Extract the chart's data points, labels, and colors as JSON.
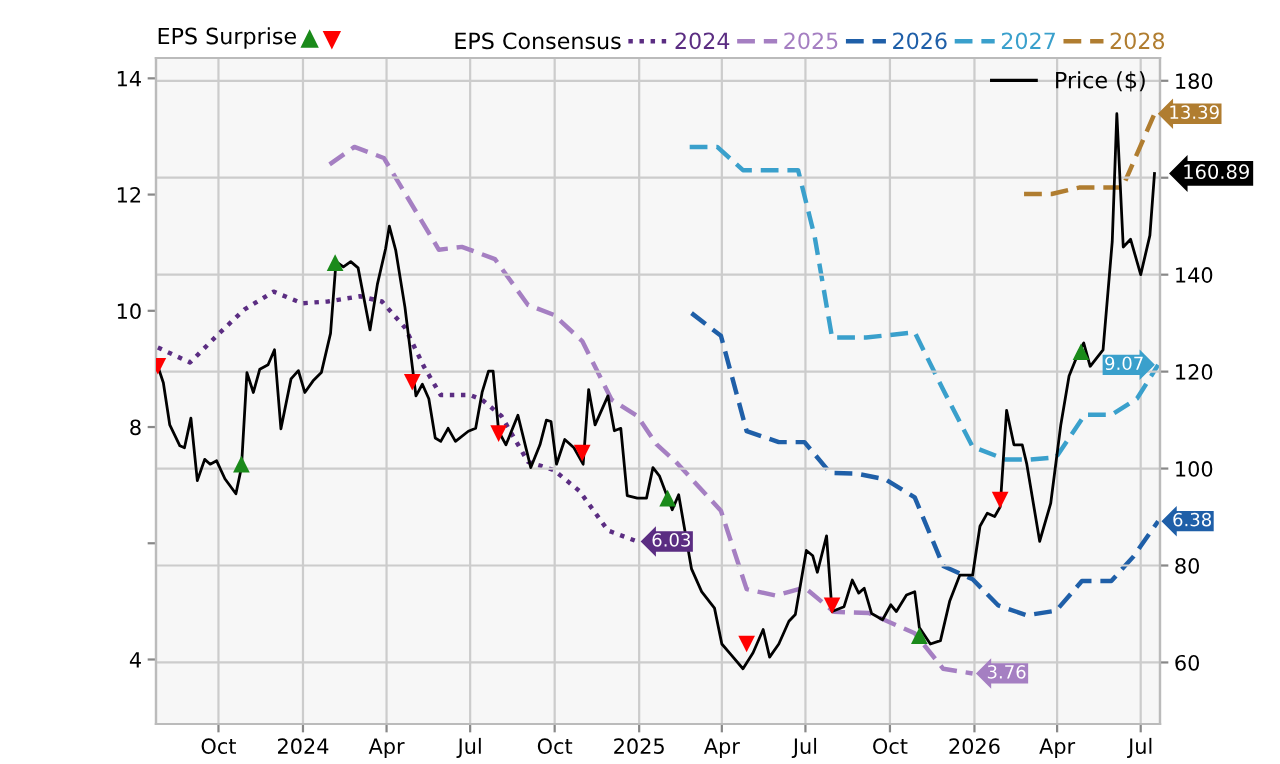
{
  "chart_data": {
    "type": "line",
    "annotations": [
      "EPS Surprise"
    ],
    "legend_title": "EPS Consensus",
    "legend": "top",
    "grid": true,
    "xlim": [
      "2023-07-25",
      "2026-07-22"
    ],
    "xticks": [
      {
        "value": "2023-10-01",
        "label": "Oct"
      },
      {
        "value": "2024-01-01",
        "label": "2024"
      },
      {
        "value": "2024-04-01",
        "label": "Apr"
      },
      {
        "value": "2024-07-01",
        "label": "Jul"
      },
      {
        "value": "2024-10-01",
        "label": "Oct"
      },
      {
        "value": "2025-01-01",
        "label": "2025"
      },
      {
        "value": "2025-04-01",
        "label": "Apr"
      },
      {
        "value": "2025-07-01",
        "label": "Jul"
      },
      {
        "value": "2025-10-01",
        "label": "Oct"
      },
      {
        "value": "2026-01-01",
        "label": "2026"
      },
      {
        "value": "2026-04-01",
        "label": "Apr"
      },
      {
        "value": "2026-07-01",
        "label": "Jul"
      }
    ],
    "ylim": [
      2.89,
      14.35
    ],
    "yticks": [
      4,
      {
        "value": 6,
        "label": null
      },
      8,
      10,
      12,
      14
    ],
    "y2lim": [
      47.3,
      184.7
    ],
    "y2ticks": [
      60,
      80,
      100,
      120,
      140,
      {
        "value": 160,
        "label": null
      },
      180
    ],
    "series": [
      {
        "name": "2024",
        "color": "#5b2d82",
        "line_style": "dotted",
        "x": [
          "2023-07-27",
          "2023-08-31",
          "2023-10-01",
          "2023-10-29",
          "2023-11-30",
          "2023-12-31",
          "2024-01-28",
          "2024-03-03",
          "2024-03-27",
          "2024-04-21",
          "2024-05-12",
          "2024-05-30",
          "2024-07-01",
          "2024-07-14",
          "2024-08-04",
          "2024-09-02",
          "2024-09-30",
          "2024-10-28",
          "2024-11-28",
          "2024-12-30"
        ],
        "values": [
          9.37,
          9.11,
          9.6,
          10.02,
          10.33,
          10.13,
          10.16,
          10.25,
          10.16,
          9.71,
          9.03,
          8.55,
          8.55,
          8.47,
          8.19,
          7.4,
          7.26,
          6.9,
          6.22,
          6.03
        ],
        "value_labels": [
          null,
          null,
          null,
          null,
          null,
          null,
          null,
          null,
          null,
          null,
          null,
          null,
          null,
          null,
          null,
          null,
          null,
          null,
          null,
          "6.03"
        ]
      },
      {
        "name": "2025",
        "color": "#a57fc2",
        "line_style": "dashed",
        "x": [
          "2024-01-30",
          "2024-02-26",
          "2024-03-29",
          "2024-05-28",
          "2024-06-22",
          "2024-07-28",
          "2024-09-02",
          "2024-09-30",
          "2024-10-31",
          "2024-12-02",
          "2024-12-30",
          "2025-01-20",
          "2025-02-10",
          "2025-03-31",
          "2025-04-28",
          "2025-05-30",
          "2025-06-30",
          "2025-08-01",
          "2025-09-08",
          "2025-10-28",
          "2025-11-28",
          "2025-12-30"
        ],
        "values": [
          12.52,
          12.82,
          12.63,
          11.05,
          11.1,
          10.89,
          10.1,
          9.93,
          9.48,
          8.47,
          8.19,
          7.7,
          7.4,
          6.56,
          5.21,
          5.1,
          5.24,
          4.82,
          4.8,
          4.45,
          3.84,
          3.76
        ],
        "value_labels": [
          null,
          null,
          null,
          null,
          null,
          null,
          null,
          null,
          null,
          null,
          null,
          null,
          null,
          null,
          null,
          null,
          null,
          null,
          null,
          null,
          null,
          "3.76"
        ]
      },
      {
        "name": "2026",
        "color": "#1f5fa8",
        "line_style": "dashed",
        "x": [
          "2025-02-27",
          "2025-03-31",
          "2025-04-28",
          "2025-06-02",
          "2025-06-30",
          "2025-07-28",
          "2025-08-25",
          "2025-09-26",
          "2025-10-28",
          "2025-11-28",
          "2025-12-30",
          "2026-01-27",
          "2026-02-27",
          "2026-03-31",
          "2026-04-28",
          "2026-05-30",
          "2026-06-23",
          "2026-07-20"
        ],
        "values": [
          9.96,
          9.57,
          7.93,
          7.74,
          7.74,
          7.21,
          7.2,
          7.1,
          6.79,
          5.61,
          5.38,
          4.93,
          4.76,
          4.84,
          5.35,
          5.35,
          5.77,
          6.38
        ],
        "value_labels": [
          null,
          null,
          null,
          null,
          null,
          null,
          null,
          null,
          null,
          null,
          null,
          null,
          null,
          null,
          null,
          null,
          null,
          "6.38"
        ]
      },
      {
        "name": "2027",
        "color": "#3aa0cc",
        "line_style": "dashed",
        "x": [
          "2025-02-25",
          "2025-03-27",
          "2025-04-24",
          "2025-06-23",
          "2025-07-11",
          "2025-07-30",
          "2025-09-05",
          "2025-10-28",
          "2025-11-28",
          "2025-12-30",
          "2026-02-04",
          "2026-03-03",
          "2026-03-31",
          "2026-05-01",
          "2026-05-30",
          "2026-06-27",
          "2026-07-20"
        ],
        "values": [
          12.82,
          12.82,
          12.42,
          12.42,
          11.28,
          9.54,
          9.54,
          9.63,
          8.64,
          7.66,
          7.44,
          7.44,
          7.48,
          8.21,
          8.21,
          8.49,
          9.07
        ],
        "value_labels": [
          null,
          null,
          null,
          null,
          null,
          null,
          null,
          null,
          null,
          null,
          null,
          null,
          null,
          null,
          null,
          null,
          "9.07"
        ]
      },
      {
        "name": "2028",
        "color": "#b07d30",
        "line_style": "dashed",
        "x": [
          "2026-02-24",
          "2026-03-26",
          "2026-04-25",
          "2026-06-11",
          "2026-07-16"
        ],
        "values": [
          12.01,
          12.01,
          12.12,
          12.12,
          13.39
        ],
        "value_labels": [
          null,
          null,
          null,
          null,
          "13.39"
        ]
      },
      {
        "name": "Price ($)",
        "color": "#000000",
        "line_style": "solid",
        "axis": "y2",
        "x": [
          "2023-07-27",
          "2023-08-02",
          "2023-08-09",
          "2023-08-20",
          "2023-08-25",
          "2023-09-01",
          "2023-09-08",
          "2023-09-16",
          "2023-09-22",
          "2023-09-29",
          "2023-10-08",
          "2023-10-20",
          "2023-10-26",
          "2023-11-01",
          "2023-11-08",
          "2023-11-15",
          "2023-11-24",
          "2023-12-01",
          "2023-12-08",
          "2023-12-19",
          "2023-12-27",
          "2024-01-03",
          "2024-01-12",
          "2024-01-21",
          "2024-01-31",
          "2024-02-06",
          "2024-02-14",
          "2024-02-22",
          "2024-03-01",
          "2024-03-14",
          "2024-03-22",
          "2024-03-31",
          "2024-04-04",
          "2024-04-11",
          "2024-04-21",
          "2024-05-03",
          "2024-05-10",
          "2024-05-17",
          "2024-05-24",
          "2024-05-30",
          "2024-06-07",
          "2024-06-15",
          "2024-06-29",
          "2024-07-07",
          "2024-07-14",
          "2024-07-21",
          "2024-07-26",
          "2024-08-01",
          "2024-08-09",
          "2024-08-22",
          "2024-09-05",
          "2024-09-15",
          "2024-09-22",
          "2024-09-27",
          "2024-10-03",
          "2024-10-12",
          "2024-10-22",
          "2024-11-01",
          "2024-11-07",
          "2024-11-14",
          "2024-11-28",
          "2024-12-05",
          "2024-12-12",
          "2024-12-19",
          "2024-12-30",
          "2025-01-09",
          "2025-01-16",
          "2025-01-23",
          "2025-02-06",
          "2025-02-13",
          "2025-02-27",
          "2025-03-10",
          "2025-03-24",
          "2025-04-01",
          "2025-04-10",
          "2025-04-24",
          "2025-05-05",
          "2025-05-16",
          "2025-05-23",
          "2025-06-02",
          "2025-06-13",
          "2025-06-20",
          "2025-07-02",
          "2025-07-09",
          "2025-07-14",
          "2025-07-24",
          "2025-07-30",
          "2025-08-12",
          "2025-08-21",
          "2025-08-28",
          "2025-09-03",
          "2025-09-11",
          "2025-09-23",
          "2025-10-02",
          "2025-10-08",
          "2025-10-19",
          "2025-10-28",
          "2025-11-02",
          "2025-11-14",
          "2025-11-25",
          "2025-12-05",
          "2025-12-16",
          "2025-12-30",
          "2026-01-07",
          "2026-01-15",
          "2026-01-23",
          "2026-01-29",
          "2026-02-05",
          "2026-02-13",
          "2026-02-22",
          "2026-02-27",
          "2026-03-13",
          "2026-03-25",
          "2026-04-05",
          "2026-04-14",
          "2026-04-24",
          "2026-04-30",
          "2026-05-07",
          "2026-05-21",
          "2026-05-31",
          "2026-06-05",
          "2026-06-12",
          "2026-06-20",
          "2026-07-01",
          "2026-07-11",
          "2026-07-16"
        ],
        "values": [
          121.1,
          117.7,
          109,
          104.7,
          104.3,
          110.4,
          97.5,
          101.9,
          100.9,
          101.6,
          97.9,
          94.8,
          100.2,
          119.8,
          115.7,
          120.5,
          121.4,
          124.5,
          108.2,
          118.5,
          120.2,
          115.7,
          118.1,
          119.8,
          127.9,
          142.7,
          141.6,
          142.7,
          141.4,
          128.6,
          138,
          145.4,
          150,
          145,
          133.3,
          115,
          117.4,
          114.4,
          106.3,
          105.6,
          108.3,
          105.6,
          107.7,
          108.3,
          115.7,
          120.1,
          120.1,
          107.7,
          104.9,
          111,
          100.2,
          104.9,
          110,
          109.7,
          100.9,
          106,
          104.3,
          100.9,
          116.3,
          109,
          115,
          107.8,
          108.3,
          94.4,
          93.9,
          93.9,
          100.2,
          98.5,
          91.5,
          94.6,
          79.3,
          74.6,
          71.2,
          63.8,
          61.8,
          58.7,
          62,
          66.8,
          61.1,
          63.8,
          68.5,
          69.9,
          83.1,
          82,
          78.6,
          86.1,
          70.5,
          71.5,
          77,
          74.3,
          75.3,
          70.1,
          68.8,
          71.9,
          70.5,
          73.9,
          74.6,
          67.2,
          63.8,
          64.5,
          72.6,
          78,
          78,
          88.1,
          90.8,
          90.1,
          92.1,
          112,
          104.9,
          104.9,
          100.9,
          85,
          92.8,
          109,
          119.1,
          123.8,
          125.9,
          121.1,
          124.5,
          146.8,
          173.2,
          145.7,
          147.3,
          140,
          148.1,
          160.89
        ],
        "value_labels": [
          null,
          null,
          null,
          null,
          null,
          null,
          null,
          null,
          null,
          null,
          null,
          null,
          null,
          null,
          null,
          null,
          null,
          null,
          null,
          null,
          null,
          null,
          null,
          null,
          null,
          null,
          null,
          null,
          null,
          null,
          null,
          null,
          null,
          null,
          null,
          null,
          null,
          null,
          null,
          null,
          null,
          null,
          null,
          null,
          null,
          null,
          null,
          null,
          null,
          null,
          null,
          null,
          null,
          null,
          null,
          null,
          null,
          null,
          null,
          null,
          null,
          null,
          null,
          null,
          null,
          null,
          null,
          null,
          null,
          null,
          null,
          null,
          null,
          null,
          null,
          null,
          null,
          null,
          null,
          null,
          null,
          null,
          null,
          null,
          null,
          null,
          null,
          null,
          null,
          null,
          null,
          null,
          null,
          null,
          null,
          null,
          null,
          null,
          null,
          null,
          null,
          null,
          null,
          null,
          null,
          null,
          null,
          null,
          null,
          null,
          null,
          null,
          null,
          null,
          null,
          null,
          null,
          null,
          null,
          null,
          null,
          null,
          null,
          null,
          null,
          "160.89"
        ]
      },
      {
        "type": "scatter",
        "marker": "triangle",
        "color": "#1a8a1a",
        "axis": "y2",
        "x": [
          "2023-10-26",
          "2024-02-05",
          "2025-02-01",
          "2025-11-02",
          "2026-04-27"
        ],
        "values": [
          100.9,
          142.5,
          93.9,
          65.5,
          124.1
        ]
      },
      {
        "type": "scatter",
        "marker": "triangle-down",
        "color": "#ff0000",
        "axis": "y2",
        "x": [
          "2023-07-27",
          "2024-04-29",
          "2024-08-01",
          "2024-10-31",
          "2025-04-28",
          "2025-07-30",
          "2026-01-29"
        ],
        "values": [
          121.1,
          117.8,
          107.2,
          103.2,
          63.8,
          71.7,
          93.5
        ]
      }
    ]
  }
}
